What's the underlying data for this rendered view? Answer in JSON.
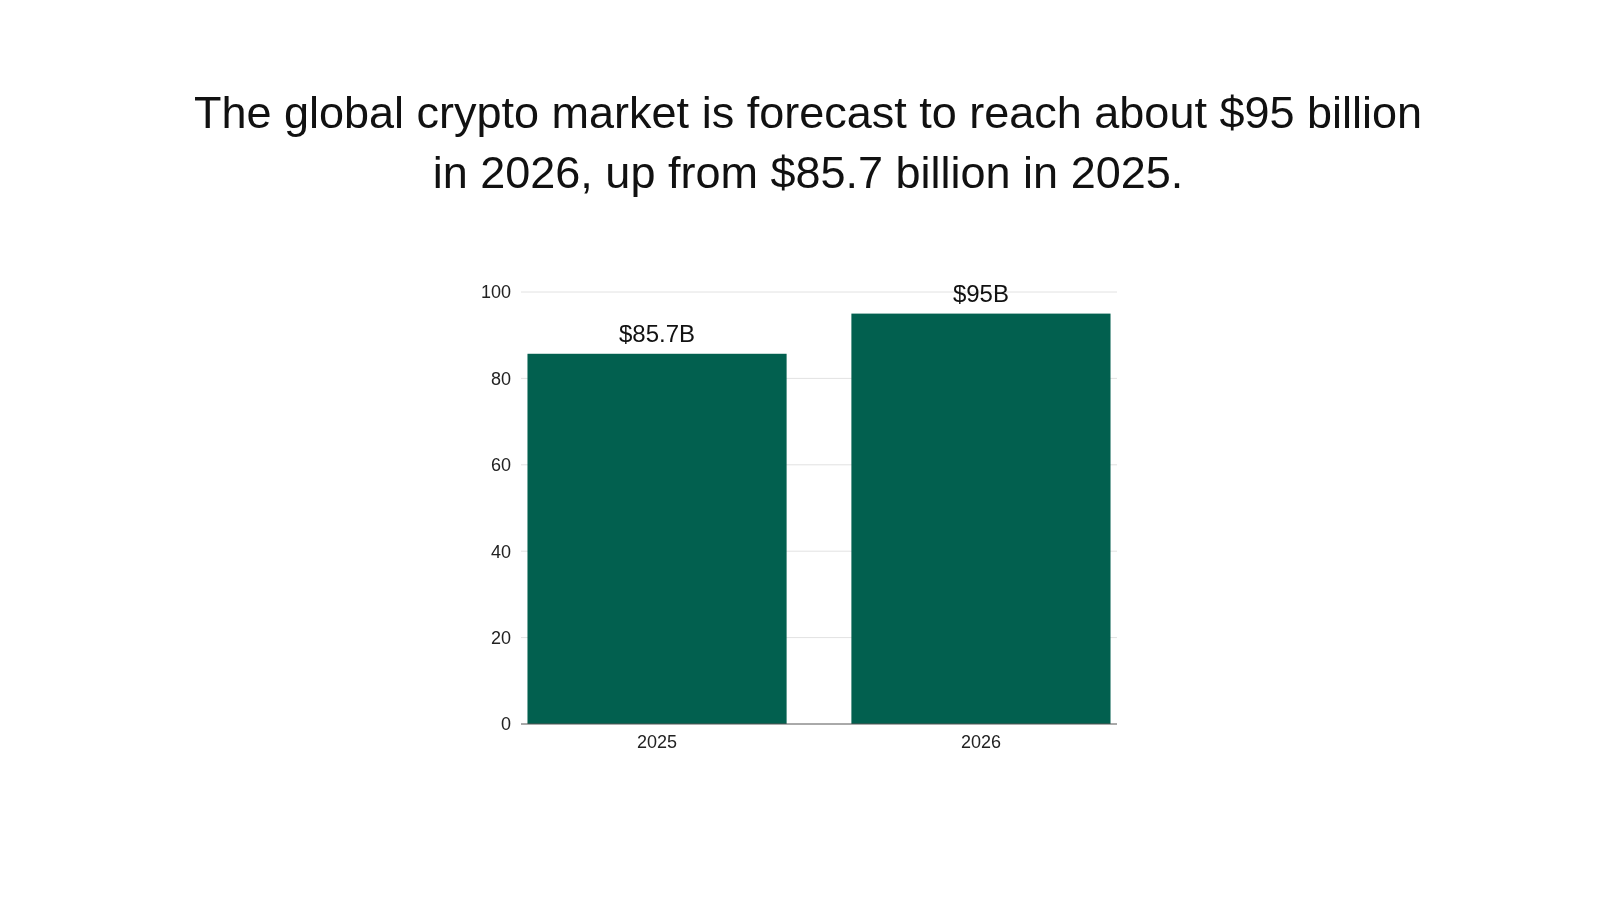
{
  "chart_data": {
    "type": "bar",
    "title": "The global crypto market is forecast to reach about $95 billion in 2026, up from $85.7 billion in 2025.",
    "categories": [
      "2025",
      "2026"
    ],
    "values": [
      85.7,
      95
    ],
    "value_labels": [
      "$85.7B",
      "$95B"
    ],
    "color": "#02604f",
    "ylim": [
      0,
      100
    ],
    "yticks": [
      0,
      20,
      40,
      60,
      80,
      100
    ],
    "grid": "y"
  }
}
